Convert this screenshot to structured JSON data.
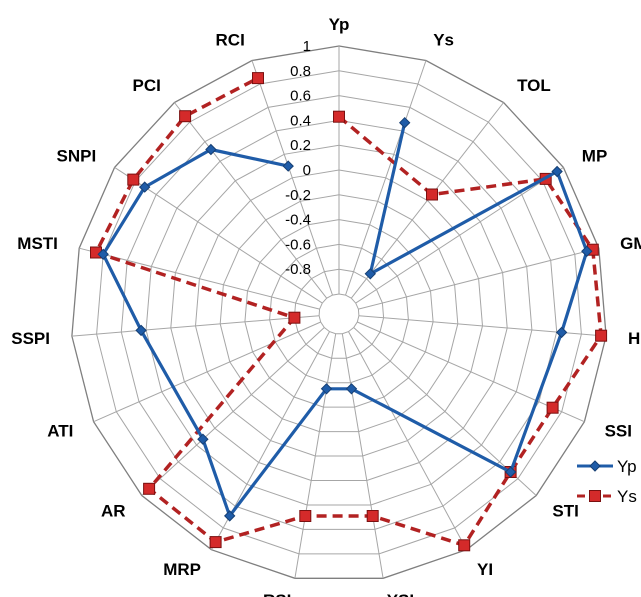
{
  "chart_data": {
    "type": "radar",
    "categories": [
      "Yp",
      "Ys",
      "TOL",
      "MP",
      "GMP",
      "HM",
      "SSI",
      "STI",
      "YI",
      "YSI",
      "RSI",
      "MRP",
      "AR",
      "ATI",
      "SSPI",
      "MSTI",
      "SNPI",
      "PCI",
      "RCI"
    ],
    "ticks": [
      "1",
      "0.8",
      "0.6",
      "0.4",
      "0.2",
      "0",
      "-0.2",
      "-0.4",
      "-0.6",
      "-0.8"
    ],
    "rlim": [
      -1,
      1
    ],
    "series": [
      {
        "name": "Yp",
        "color": "#1F5CA8",
        "marker": "diamond",
        "dash": "solid",
        "values": [
          null,
          0.47,
          -0.75,
          0.94,
          0.9,
          0.64,
          null,
          0.72,
          null,
          -0.55,
          -0.55,
          0.69,
          0.33,
          null,
          0.44,
          0.8,
          0.71,
          0.52,
          0.1
        ]
      },
      {
        "name": "Ys",
        "color": "#B22222",
        "marker": "square",
        "dash": "dashed",
        "values": [
          0.43,
          null,
          0.06,
          0.83,
          0.95,
          0.96,
          0.72,
          0.72,
          0.96,
          0.49,
          0.49,
          0.93,
          0.92,
          null,
          -0.8,
          0.86,
          0.82,
          0.86,
          0.85
        ]
      }
    ],
    "legend": "right",
    "grid": true
  }
}
